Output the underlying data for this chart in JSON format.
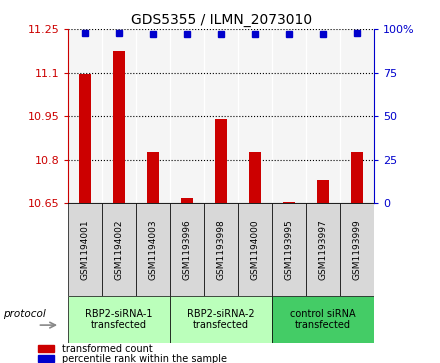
{
  "title": "GDS5355 / ILMN_2073010",
  "samples": [
    "GSM1194001",
    "GSM1194002",
    "GSM1194003",
    "GSM1193996",
    "GSM1193998",
    "GSM1194000",
    "GSM1193995",
    "GSM1193997",
    "GSM1193999"
  ],
  "bar_values": [
    11.095,
    11.175,
    10.825,
    10.668,
    10.94,
    10.825,
    10.655,
    10.73,
    10.825
  ],
  "percentile_values": [
    98,
    98,
    97,
    97,
    97,
    97,
    97,
    97,
    98
  ],
  "ylim_left": [
    10.65,
    11.25
  ],
  "yticks_left": [
    10.65,
    10.8,
    10.95,
    11.1,
    11.25
  ],
  "ytick_labels_left": [
    "10.65",
    "10.8",
    "10.95",
    "11.1",
    "11.25"
  ],
  "ylim_right": [
    0,
    100
  ],
  "yticks_right": [
    0,
    25,
    50,
    75,
    100
  ],
  "ytick_labels_right": [
    "0",
    "25",
    "50",
    "75",
    "100%"
  ],
  "bar_color": "#cc0000",
  "dot_color": "#0000cc",
  "groups": [
    {
      "label": "RBP2-siRNA-1\ntransfected",
      "indices": [
        0,
        1,
        2
      ],
      "color": "#aaffaa"
    },
    {
      "label": "RBP2-siRNA-2\ntransfected",
      "indices": [
        3,
        4,
        5
      ],
      "color": "#aaffaa"
    },
    {
      "label": "control siRNA\ntransfected",
      "indices": [
        6,
        7,
        8
      ],
      "color": "#44cc66"
    }
  ],
  "protocol_label": "protocol",
  "legend_bar_label": "transformed count",
  "legend_dot_label": "percentile rank within the sample",
  "sample_bg_color": "#d8d8d8",
  "bar_color_hex": "#cc0000",
  "title_fontsize": 10,
  "tick_fontsize": 8,
  "label_fontsize": 7.5
}
